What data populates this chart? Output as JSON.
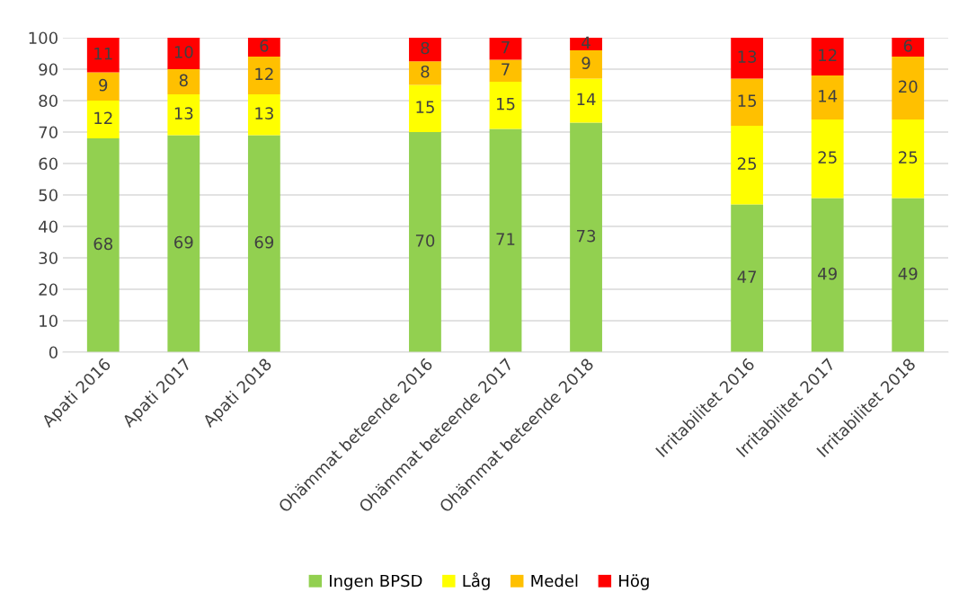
{
  "chart_data": {
    "type": "bar",
    "stacked": true,
    "categories": [
      "Apati 2016",
      "Apati 2017",
      "Apati 2018",
      null,
      "Ohämmat beteende 2016",
      "Ohämmat beteende 2017",
      "Ohämmat beteende 2018",
      null,
      "Irritabilitet 2016",
      "Irritabilitet 2017",
      "Irritabilitet 2018"
    ],
    "series": [
      {
        "name": "Ingen BPSD",
        "color": "#92d050",
        "values": [
          68,
          69,
          69,
          null,
          70,
          71,
          73,
          null,
          47,
          49,
          49
        ]
      },
      {
        "name": "Låg",
        "color": "#ffff00",
        "values": [
          12,
          13,
          13,
          null,
          15,
          15,
          14,
          null,
          25,
          25,
          25
        ]
      },
      {
        "name": "Medel",
        "color": "#ffc000",
        "values": [
          9,
          8,
          12,
          null,
          7.5,
          7,
          9,
          null,
          15,
          14,
          20
        ],
        "value_labels": [
          "9",
          "8",
          "12",
          null,
          "8",
          "7",
          "9",
          null,
          "15",
          "14",
          "20"
        ]
      },
      {
        "name": "Hög",
        "color": "#ff0000",
        "values": [
          11,
          10,
          6,
          null,
          7.5,
          7,
          4,
          null,
          13,
          12,
          6
        ],
        "value_labels": [
          "11",
          "10",
          "6",
          null,
          "8",
          "7",
          "4",
          null,
          "13",
          "12",
          "6"
        ]
      }
    ],
    "ylim": [
      0,
      100
    ],
    "yticks": [
      0,
      10,
      20,
      30,
      40,
      50,
      60,
      70,
      80,
      90,
      100
    ],
    "grid": "y",
    "legend": "bottom",
    "data_labels": true
  }
}
